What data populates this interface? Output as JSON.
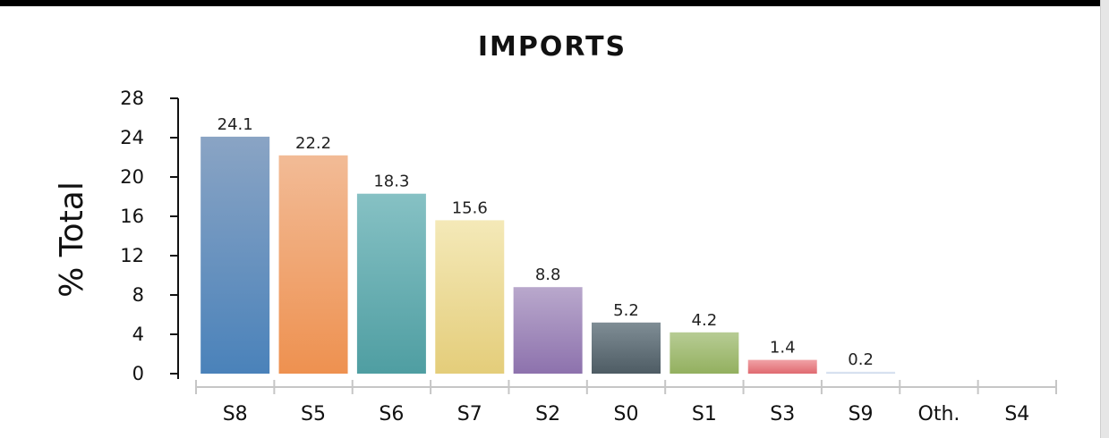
{
  "chart_data": {
    "type": "bar",
    "title": "IMPORTS",
    "xlabel": "",
    "ylabel": "% Total",
    "ylim": [
      0,
      28
    ],
    "yticks": [
      0,
      4,
      8,
      12,
      16,
      20,
      24,
      28
    ],
    "grid": false,
    "legend": "none",
    "categories": [
      "S8",
      "S5",
      "S6",
      "S7",
      "S2",
      "S0",
      "S1",
      "S3",
      "S9",
      "Oth.",
      "S4"
    ],
    "values": [
      24.1,
      22.2,
      18.3,
      15.6,
      8.8,
      5.2,
      4.2,
      1.4,
      0.2,
      null,
      null
    ],
    "data_labels": [
      "24.1",
      "22.2",
      "18.3",
      "15.6",
      "8.8",
      "5.2",
      "4.2",
      "1.4",
      "0.2",
      "",
      ""
    ],
    "colors": [
      [
        "#8aa4c4",
        "#4a82ba"
      ],
      [
        "#f2bb96",
        "#ee9150"
      ],
      [
        "#86c1c4",
        "#4f9ea2"
      ],
      [
        "#f4e9b8",
        "#e4cd7a"
      ],
      [
        "#b9a8cc",
        "#8d72ad"
      ],
      [
        "#7f8d95",
        "#4e5c64"
      ],
      [
        "#b7cc94",
        "#93b05f"
      ],
      [
        "#f0a2a6",
        "#e06a70"
      ],
      [
        "#e4ecf6",
        "#cad6ea"
      ],
      [
        "#ffffff",
        "#ffffff"
      ],
      [
        "#ffffff",
        "#ffffff"
      ]
    ]
  }
}
